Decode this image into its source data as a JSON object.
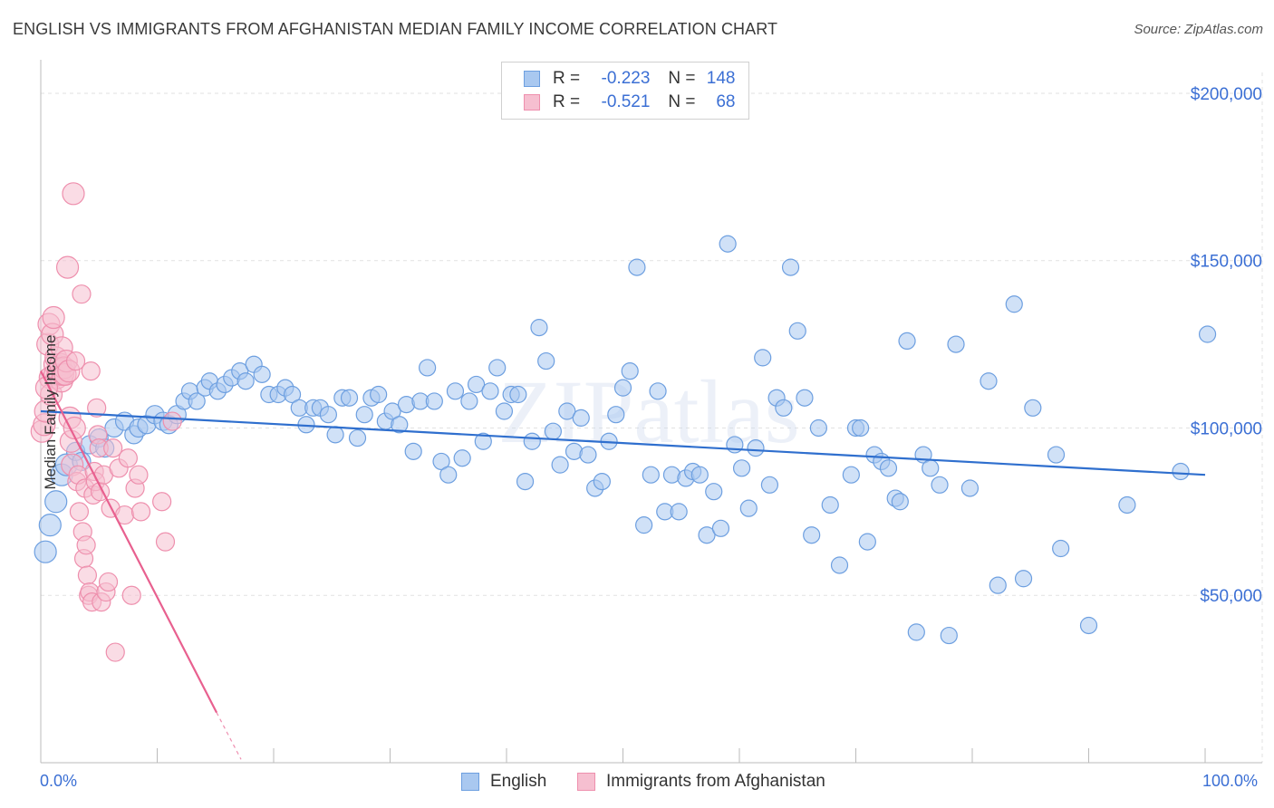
{
  "title": "ENGLISH VS IMMIGRANTS FROM AFGHANISTAN MEDIAN FAMILY INCOME CORRELATION CHART",
  "source": "Source: ZipAtlas.com",
  "legend": {
    "rows": [
      {
        "r_label": "R =",
        "r_value": "-0.223",
        "n_label": "N =",
        "n_value": "148"
      },
      {
        "r_label": "R =",
        "r_value": "-0.521",
        "n_label": "N =",
        "n_value": "68"
      }
    ]
  },
  "bottom_legend": {
    "english": "English",
    "afghan": "Immigrants from Afghanistan"
  },
  "axis": {
    "y_label": "Median Family Income",
    "x_min_label": "0.0%",
    "x_max_label": "100.0%",
    "y_ticks": [
      "$50,000",
      "$100,000",
      "$150,000",
      "$200,000"
    ]
  },
  "watermark": "ZIPatlas",
  "colors": {
    "english_fill": "#a9c8f0",
    "english_stroke": "#6d9fe0",
    "english_line": "#2f6fce",
    "afghan_fill": "#f6bfd0",
    "afghan_stroke": "#ee8fad",
    "afghan_line": "#e8608f",
    "tick_label": "#3b6fd4",
    "grid": "#e2e2e2"
  },
  "chart_data": {
    "type": "scatter",
    "xlim": [
      0,
      100
    ],
    "ylim": [
      0,
      210000
    ],
    "x_unit": "%",
    "grid": true,
    "series": [
      {
        "name": "English",
        "r": -0.223,
        "n": 148,
        "trend": {
          "x": [
            0,
            100
          ],
          "y": [
            105000,
            86000
          ]
        },
        "points": [
          [
            0.4,
            63000
          ],
          [
            0.8,
            71000
          ],
          [
            1.3,
            78000
          ],
          [
            1.8,
            86000
          ],
          [
            2.2,
            89000
          ],
          [
            3,
            93000
          ],
          [
            3.5,
            90000
          ],
          [
            4.2,
            95000
          ],
          [
            5,
            97000
          ],
          [
            5.5,
            94000
          ],
          [
            6.3,
            100000
          ],
          [
            7.2,
            102000
          ],
          [
            8,
            98000
          ],
          [
            8.4,
            100000
          ],
          [
            9.1,
            101000
          ],
          [
            9.8,
            104000
          ],
          [
            10.5,
            102000
          ],
          [
            11,
            101000
          ],
          [
            11.7,
            104000
          ],
          [
            12.3,
            108000
          ],
          [
            12.8,
            111000
          ],
          [
            13.4,
            108000
          ],
          [
            14.1,
            112000
          ],
          [
            14.5,
            114000
          ],
          [
            15.2,
            111000
          ],
          [
            15.8,
            113000
          ],
          [
            16.4,
            115000
          ],
          [
            17.1,
            117000
          ],
          [
            17.6,
            114000
          ],
          [
            18.3,
            119000
          ],
          [
            19,
            116000
          ],
          [
            19.6,
            110000
          ],
          [
            20.4,
            110000
          ],
          [
            21,
            112000
          ],
          [
            21.6,
            110000
          ],
          [
            22.2,
            106000
          ],
          [
            22.8,
            101000
          ],
          [
            23.4,
            106000
          ],
          [
            24,
            106000
          ],
          [
            24.7,
            104000
          ],
          [
            25.3,
            98000
          ],
          [
            25.9,
            109000
          ],
          [
            26.5,
            109000
          ],
          [
            27.2,
            97000
          ],
          [
            27.8,
            104000
          ],
          [
            28.4,
            109000
          ],
          [
            29,
            110000
          ],
          [
            29.6,
            102000
          ],
          [
            30.2,
            105000
          ],
          [
            30.8,
            101000
          ],
          [
            31.4,
            107000
          ],
          [
            32,
            93000
          ],
          [
            32.6,
            108000
          ],
          [
            33.2,
            118000
          ],
          [
            33.8,
            108000
          ],
          [
            34.4,
            90000
          ],
          [
            35,
            86000
          ],
          [
            35.6,
            111000
          ],
          [
            36.2,
            91000
          ],
          [
            36.8,
            108000
          ],
          [
            37.4,
            113000
          ],
          [
            38,
            96000
          ],
          [
            38.6,
            111000
          ],
          [
            39.2,
            118000
          ],
          [
            39.8,
            105000
          ],
          [
            40.4,
            110000
          ],
          [
            41,
            110000
          ],
          [
            41.6,
            84000
          ],
          [
            42.2,
            96000
          ],
          [
            42.8,
            130000
          ],
          [
            43.4,
            120000
          ],
          [
            44,
            99000
          ],
          [
            44.6,
            89000
          ],
          [
            45.2,
            105000
          ],
          [
            45.8,
            93000
          ],
          [
            46.4,
            103000
          ],
          [
            47,
            92000
          ],
          [
            47.6,
            82000
          ],
          [
            48.2,
            84000
          ],
          [
            48.8,
            96000
          ],
          [
            49.4,
            104000
          ],
          [
            50,
            112000
          ],
          [
            50.6,
            117000
          ],
          [
            51.2,
            148000
          ],
          [
            51.8,
            71000
          ],
          [
            52.4,
            86000
          ],
          [
            53,
            111000
          ],
          [
            53.6,
            75000
          ],
          [
            54.2,
            86000
          ],
          [
            54.8,
            75000
          ],
          [
            55.4,
            85000
          ],
          [
            56,
            87000
          ],
          [
            56.6,
            86000
          ],
          [
            57.2,
            68000
          ],
          [
            57.8,
            81000
          ],
          [
            58.4,
            70000
          ],
          [
            59,
            155000
          ],
          [
            59.6,
            95000
          ],
          [
            60.2,
            88000
          ],
          [
            60.8,
            76000
          ],
          [
            61.4,
            94000
          ],
          [
            62,
            121000
          ],
          [
            62.6,
            83000
          ],
          [
            63.2,
            109000
          ],
          [
            63.8,
            106000
          ],
          [
            64.4,
            148000
          ],
          [
            65,
            129000
          ],
          [
            65.6,
            109000
          ],
          [
            66.2,
            68000
          ],
          [
            66.8,
            100000
          ],
          [
            67.8,
            77000
          ],
          [
            68.6,
            59000
          ],
          [
            69.6,
            86000
          ],
          [
            70,
            100000
          ],
          [
            70.4,
            100000
          ],
          [
            71,
            66000
          ],
          [
            71.6,
            92000
          ],
          [
            72.2,
            90000
          ],
          [
            72.8,
            88000
          ],
          [
            73.4,
            79000
          ],
          [
            73.8,
            78000
          ],
          [
            74.4,
            126000
          ],
          [
            75.2,
            39000
          ],
          [
            75.8,
            92000
          ],
          [
            76.4,
            88000
          ],
          [
            77.2,
            83000
          ],
          [
            78,
            38000
          ],
          [
            78.6,
            125000
          ],
          [
            79.8,
            82000
          ],
          [
            81.4,
            114000
          ],
          [
            82.2,
            53000
          ],
          [
            83.6,
            137000
          ],
          [
            84.4,
            55000
          ],
          [
            85.2,
            106000
          ],
          [
            87.2,
            92000
          ],
          [
            87.6,
            64000
          ],
          [
            90,
            41000
          ],
          [
            93.3,
            77000
          ],
          [
            97.9,
            87000
          ],
          [
            100.2,
            128000
          ]
        ]
      },
      {
        "name": "Immigrants from Afghanistan",
        "r": -0.521,
        "n": 68,
        "trend": {
          "x": [
            0,
            15.1
          ],
          "y": [
            117000,
            15000
          ],
          "dashed_to": {
            "x": 17.2,
            "y": 1000
          }
        },
        "points": [
          [
            0.1,
            99000
          ],
          [
            0.3,
            101000
          ],
          [
            0.4,
            105000
          ],
          [
            0.6,
            125000
          ],
          [
            0.7,
            131000
          ],
          [
            0.8,
            115000
          ],
          [
            0.9,
            110000
          ],
          [
            1,
            128000
          ],
          [
            1.1,
            133000
          ],
          [
            1.2,
            119000
          ],
          [
            1.2,
            116000
          ],
          [
            1.3,
            121000
          ],
          [
            1.4,
            115000
          ],
          [
            1.5,
            117000
          ],
          [
            1.6,
            116000
          ],
          [
            1.7,
            119000
          ],
          [
            1.8,
            124000
          ],
          [
            1.8,
            114000
          ],
          [
            1.9,
            116000
          ],
          [
            2,
            118000
          ],
          [
            2.1,
            116000
          ],
          [
            2.2,
            120000
          ],
          [
            2.3,
            148000
          ],
          [
            2.4,
            117000
          ],
          [
            2.5,
            103000
          ],
          [
            2.6,
            96000
          ],
          [
            2.7,
            89000
          ],
          [
            2.8,
            170000
          ],
          [
            2.9,
            100000
          ],
          [
            3,
            120000
          ],
          [
            3.1,
            84000
          ],
          [
            3.2,
            86000
          ],
          [
            3.3,
            75000
          ],
          [
            3.5,
            140000
          ],
          [
            3.6,
            69000
          ],
          [
            3.7,
            61000
          ],
          [
            3.8,
            82000
          ],
          [
            3.9,
            65000
          ],
          [
            4,
            56000
          ],
          [
            4.1,
            50000
          ],
          [
            4.2,
            51000
          ],
          [
            4.4,
            48000
          ],
          [
            4.5,
            80000
          ],
          [
            4.6,
            87000
          ],
          [
            4.7,
            84000
          ],
          [
            4.8,
            106000
          ],
          [
            4.9,
            98000
          ],
          [
            5,
            94000
          ],
          [
            5.1,
            81000
          ],
          [
            5.2,
            48000
          ],
          [
            5.4,
            86000
          ],
          [
            5.6,
            51000
          ],
          [
            5.8,
            54000
          ],
          [
            6,
            76000
          ],
          [
            6.2,
            94000
          ],
          [
            6.4,
            33000
          ],
          [
            6.7,
            88000
          ],
          [
            7.2,
            74000
          ],
          [
            7.5,
            91000
          ],
          [
            7.8,
            50000
          ],
          [
            8.1,
            82000
          ],
          [
            8.4,
            86000
          ],
          [
            8.6,
            75000
          ],
          [
            10.4,
            78000
          ],
          [
            10.7,
            66000
          ],
          [
            11.3,
            102000
          ],
          [
            4.3,
            117000
          ],
          [
            0.5,
            112000
          ]
        ]
      }
    ]
  }
}
